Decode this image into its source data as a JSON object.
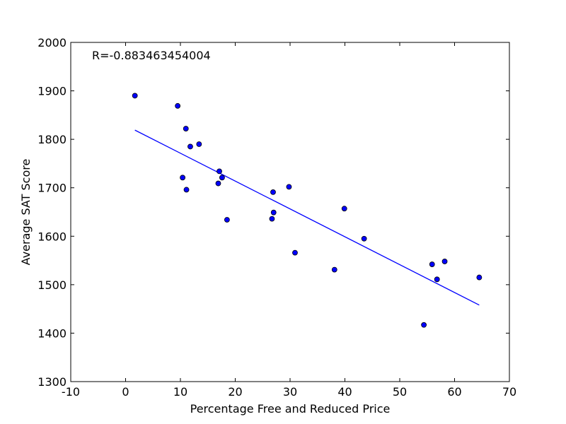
{
  "chart_data": {
    "type": "scatter",
    "annotation": "R=-0.883463454004",
    "xlabel": "Percentage Free and Reduced Price",
    "ylabel": "Average SAT Score",
    "xlim": [
      -10,
      70
    ],
    "ylim": [
      1300,
      2000
    ],
    "xticks": [
      -10,
      0,
      10,
      20,
      30,
      40,
      50,
      60,
      70
    ],
    "yticks": [
      1300,
      1400,
      1500,
      1600,
      1700,
      1800,
      1900,
      2000
    ],
    "grid": false,
    "points": [
      {
        "x": 1.7,
        "y": 1890
      },
      {
        "x": 9.5,
        "y": 1869
      },
      {
        "x": 11.0,
        "y": 1822
      },
      {
        "x": 11.8,
        "y": 1785
      },
      {
        "x": 13.4,
        "y": 1790
      },
      {
        "x": 10.4,
        "y": 1721
      },
      {
        "x": 11.1,
        "y": 1696
      },
      {
        "x": 17.1,
        "y": 1734
      },
      {
        "x": 17.6,
        "y": 1721
      },
      {
        "x": 16.9,
        "y": 1709
      },
      {
        "x": 18.5,
        "y": 1634
      },
      {
        "x": 26.9,
        "y": 1691
      },
      {
        "x": 29.8,
        "y": 1702
      },
      {
        "x": 27.0,
        "y": 1649
      },
      {
        "x": 26.7,
        "y": 1636
      },
      {
        "x": 30.9,
        "y": 1566
      },
      {
        "x": 39.9,
        "y": 1657
      },
      {
        "x": 43.5,
        "y": 1595
      },
      {
        "x": 38.1,
        "y": 1531
      },
      {
        "x": 55.9,
        "y": 1542
      },
      {
        "x": 58.2,
        "y": 1548
      },
      {
        "x": 56.8,
        "y": 1511
      },
      {
        "x": 64.5,
        "y": 1515
      },
      {
        "x": 54.4,
        "y": 1417
      }
    ],
    "fit_line": {
      "x": [
        1.7,
        64.5
      ],
      "y": [
        1819,
        1458
      ]
    },
    "colors": {
      "marker": "#0000ff",
      "line": "#0000ff"
    }
  }
}
